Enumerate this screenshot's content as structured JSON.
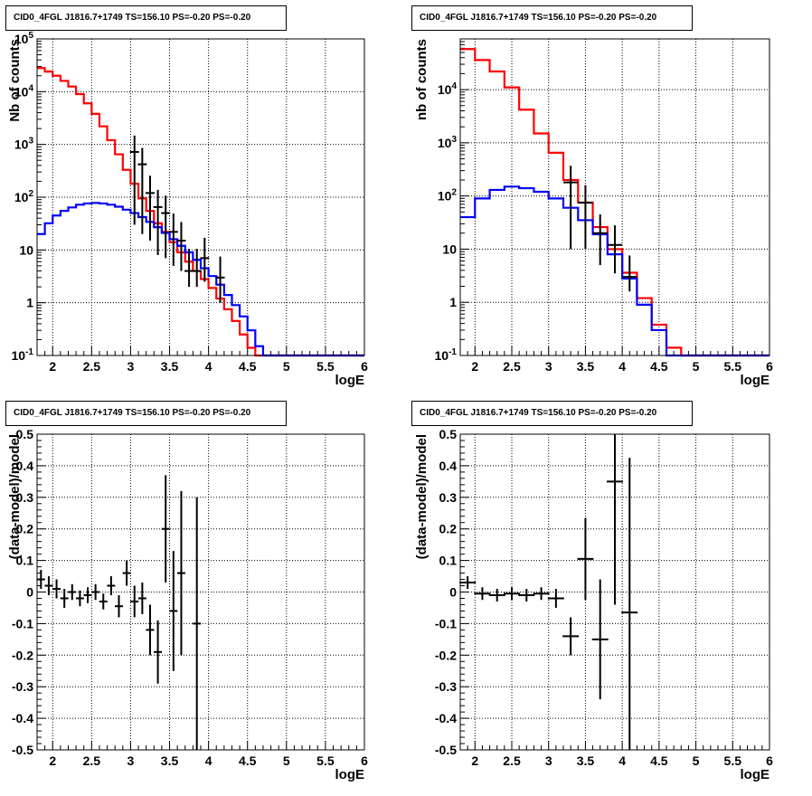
{
  "chart_data": [
    {
      "type": "line",
      "title": "CID0_4FGL J1816.7+1749 TS=156.10 PS=-0.20 PS=-0.20",
      "xlabel": "logE",
      "ylabel": "Nb of counts",
      "xlim": [
        1.8,
        6.0
      ],
      "ylim": [
        0.1,
        100000
      ],
      "yscale": "log",
      "grid": true,
      "xticks": [
        "2",
        "2.5",
        "3",
        "3.5",
        "4",
        "4.5",
        "5",
        "5.5",
        "6"
      ],
      "yticks": [
        "10^-1",
        "1",
        "10",
        "10^2",
        "10^3",
        "10^4",
        "10^5"
      ],
      "series": [
        {
          "color": "#ff0000",
          "style": "step",
          "bin_edges": [
            1.8,
            1.9,
            2.0,
            2.1,
            2.2,
            2.3,
            2.4,
            2.5,
            2.6,
            2.7,
            2.8,
            2.9,
            3.0,
            3.1,
            3.2,
            3.3,
            3.4,
            3.5,
            3.6,
            3.7,
            3.8,
            3.9,
            4.0,
            4.1,
            4.2,
            4.3,
            4.4,
            4.5,
            4.6,
            4.7,
            4.8,
            4.9,
            5.0,
            5.1,
            5.2,
            5.3,
            5.4,
            5.5,
            5.6,
            5.7,
            5.8,
            5.9,
            6.0
          ],
          "values": [
            28000,
            24000,
            20000,
            16000,
            12500,
            9000,
            6000,
            3800,
            2200,
            1200,
            650,
            330,
            180,
            95,
            55,
            32,
            22,
            14,
            9,
            6,
            4,
            2.8,
            1.9,
            1.2,
            0.75,
            0.45,
            0.25,
            0.14,
            0.1,
            0.1,
            0.1,
            0.1,
            0.1,
            0.1,
            0.1,
            0.1,
            0.1,
            0.1,
            0.1,
            0.1,
            0.1,
            0.1
          ]
        },
        {
          "color": "#0000ff",
          "style": "step",
          "bin_edges": [
            1.8,
            1.9,
            2.0,
            2.1,
            2.2,
            2.3,
            2.4,
            2.5,
            2.6,
            2.7,
            2.8,
            2.9,
            3.0,
            3.1,
            3.2,
            3.3,
            3.4,
            3.5,
            3.6,
            3.7,
            3.8,
            3.9,
            4.0,
            4.1,
            4.2,
            4.3,
            4.4,
            4.5,
            4.6,
            4.7,
            4.8,
            4.9,
            5.0,
            5.1,
            5.2,
            5.3,
            5.4,
            5.5,
            5.6,
            5.7,
            5.8,
            5.9,
            6.0
          ],
          "values": [
            20,
            32,
            45,
            55,
            64,
            72,
            76,
            78,
            76,
            72,
            66,
            58,
            50,
            42,
            34,
            27,
            21,
            16,
            12,
            9,
            6.5,
            4.5,
            3.2,
            2.2,
            1.4,
            0.9,
            0.55,
            0.3,
            0.15,
            0.1,
            0.1,
            0.1,
            0.1,
            0.1,
            0.1,
            0.1,
            0.1,
            0.1,
            0.1,
            0.1,
            0.1,
            0.1
          ]
        },
        {
          "color": "#000000",
          "style": "points",
          "x": [
            3.05,
            3.15,
            3.25,
            3.35,
            3.45,
            3.55,
            3.65,
            3.75,
            3.85,
            3.95,
            4.15
          ],
          "y": [
            720,
            420,
            120,
            65,
            50,
            22,
            15,
            4,
            4,
            7,
            3
          ],
          "yerr_low": [
            690,
            400,
            105,
            57,
            43,
            17,
            11,
            2,
            2,
            4.5,
            2
          ],
          "yerr_high": [
            750,
            440,
            135,
            73,
            57,
            27,
            19,
            6.5,
            6.5,
            10,
            4.5
          ]
        }
      ]
    },
    {
      "type": "line",
      "title": "CID0_4FGL J1816.7+1749 TS=156.10 PS=-0.20 PS=-0.20",
      "xlabel": "logE",
      "ylabel": "nb of counts",
      "xlim": [
        1.8,
        6.0
      ],
      "ylim": [
        0.1,
        90000
      ],
      "yscale": "log",
      "grid": true,
      "xticks": [
        "2",
        "2.5",
        "3",
        "3.5",
        "4",
        "4.5",
        "5",
        "5.5",
        "6"
      ],
      "yticks": [
        "10^-1",
        "1",
        "10",
        "10^2",
        "10^3",
        "10^4"
      ],
      "series": [
        {
          "color": "#ff0000",
          "style": "step",
          "bin_edges": [
            1.8,
            2.0,
            2.2,
            2.4,
            2.6,
            2.8,
            3.0,
            3.2,
            3.4,
            3.6,
            3.8,
            4.0,
            4.2,
            4.4,
            4.6,
            4.8,
            5.0,
            5.2,
            5.4,
            5.6,
            5.8,
            6.0
          ],
          "values": [
            58000,
            36000,
            22000,
            11000,
            4200,
            1500,
            650,
            200,
            75,
            26,
            10,
            3.6,
            1.2,
            0.38,
            0.14,
            0.1,
            0.1,
            0.1,
            0.1,
            0.1,
            0.1
          ]
        },
        {
          "color": "#0000ff",
          "style": "step",
          "bin_edges": [
            1.8,
            2.0,
            2.2,
            2.4,
            2.6,
            2.8,
            3.0,
            3.2,
            3.4,
            3.6,
            3.8,
            4.0,
            4.2,
            4.4,
            4.6,
            4.8,
            5.0,
            5.2,
            5.4,
            5.6,
            5.8,
            6.0
          ],
          "values": [
            40,
            90,
            130,
            150,
            140,
            120,
            90,
            60,
            35,
            19,
            8,
            2.8,
            0.9,
            0.3,
            0.1,
            0.1,
            0.1,
            0.1,
            0.1,
            0.1,
            0.1
          ]
        },
        {
          "color": "#000000",
          "style": "points",
          "x": [
            3.3,
            3.5,
            3.7,
            3.9,
            4.1
          ],
          "y": [
            180,
            75,
            20,
            12,
            3
          ],
          "yerr_low": [
            170,
            65,
            15,
            8.5,
            1.4
          ],
          "yerr_high": [
            190,
            85,
            25,
            16,
            4.6
          ]
        }
      ]
    },
    {
      "type": "scatter",
      "title": "CID0_4FGL J1816.7+1749 TS=156.10 PS=-0.20 PS=-0.20",
      "xlabel": "logE",
      "ylabel": "(data-model)/model",
      "xlim": [
        1.8,
        6.0
      ],
      "ylim": [
        -0.5,
        0.5
      ],
      "grid": true,
      "xticks": [
        "2",
        "2.5",
        "3",
        "3.5",
        "4",
        "4.5",
        "5",
        "5.5",
        "6"
      ],
      "yticks": [
        "-0.5",
        "-0.4",
        "-0.3",
        "-0.2",
        "-0.1",
        "0",
        "0.1",
        "0.2",
        "0.3",
        "0.4",
        "0.5"
      ],
      "series": [
        {
          "color": "#000000",
          "x": [
            1.85,
            1.95,
            2.05,
            2.15,
            2.25,
            2.35,
            2.45,
            2.55,
            2.65,
            2.75,
            2.85,
            2.95,
            3.05,
            3.15,
            3.25,
            3.35,
            3.45,
            3.55,
            3.65,
            3.85
          ],
          "y": [
            0.04,
            0.02,
            0.01,
            -0.02,
            0.0,
            -0.02,
            -0.01,
            0.0,
            -0.03,
            0.02,
            -0.045,
            0.06,
            -0.03,
            -0.02,
            -0.12,
            -0.19,
            0.2,
            -0.06,
            0.06,
            -0.1
          ],
          "yerr": [
            0.03,
            0.03,
            0.03,
            0.03,
            0.025,
            0.025,
            0.025,
            0.025,
            0.025,
            0.03,
            0.035,
            0.04,
            0.05,
            0.05,
            0.08,
            0.1,
            0.17,
            0.19,
            0.26,
            0.4
          ]
        }
      ]
    },
    {
      "type": "scatter",
      "title": "CID0_4FGL J1816.7+1749 TS=156.10 PS=-0.20 PS=-0.20",
      "xlabel": "logE",
      "ylabel": "(data-model)/model",
      "xlim": [
        1.8,
        6.0
      ],
      "ylim": [
        -0.5,
        0.5
      ],
      "grid": true,
      "xticks": [
        "2",
        "2.5",
        "3",
        "3.5",
        "4",
        "4.5",
        "5",
        "5.5",
        "6"
      ],
      "yticks": [
        "-0.5",
        "-0.4",
        "-0.3",
        "-0.2",
        "-0.1",
        "0",
        "0.1",
        "0.2",
        "0.3",
        "0.4",
        "0.5"
      ],
      "series": [
        {
          "color": "#000000",
          "x": [
            1.9,
            2.1,
            2.3,
            2.5,
            2.7,
            2.9,
            3.1,
            3.3,
            3.5,
            3.7,
            3.9,
            4.1
          ],
          "y": [
            0.03,
            -0.005,
            -0.01,
            -0.005,
            -0.01,
            -0.005,
            -0.02,
            -0.14,
            0.105,
            -0.15,
            0.35,
            -0.065
          ],
          "yerr": [
            0.02,
            0.02,
            0.02,
            0.02,
            0.02,
            0.02,
            0.03,
            0.06,
            0.13,
            0.19,
            0.39,
            0.49
          ]
        }
      ]
    }
  ]
}
